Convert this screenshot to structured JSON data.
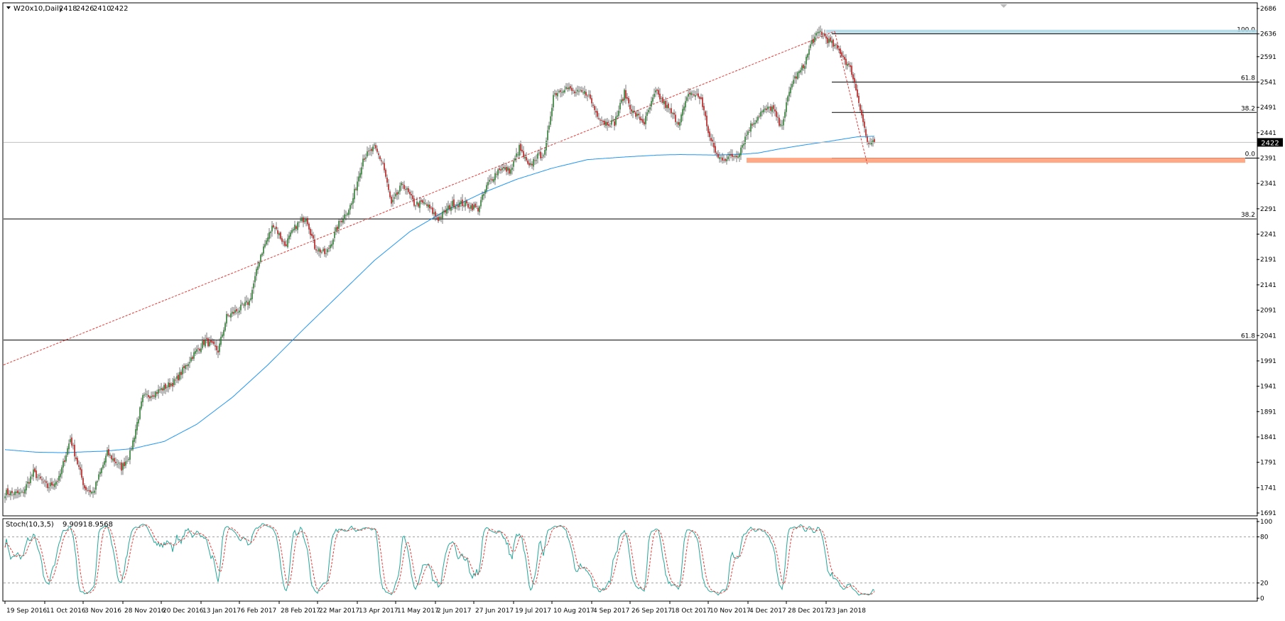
{
  "chart_data": [
    {
      "type": "candlestick",
      "header": {
        "symbol_label": "W20x10,Daily",
        "ohlc": [
          "2418",
          "2426",
          "2410",
          "2422"
        ]
      },
      "ylim": [
        1691,
        2686
      ],
      "y_ticks": [
        "2686",
        "2636",
        "2591",
        "2541",
        "2491",
        "2441",
        "2391",
        "2341",
        "2291",
        "2241",
        "2191",
        "2141",
        "2091",
        "2041",
        "1991",
        "1941",
        "1891",
        "1841",
        "1791",
        "1741",
        "1691"
      ],
      "x_ticks": [
        "19 Sep 2016",
        "11 Oct 2016",
        "3 Nov 2016",
        "28 Nov 2016",
        "20 Dec 2016",
        "13 Jan 2017",
        "6 Feb 2017",
        "28 Feb 2017",
        "22 Mar 2017",
        "13 Apr 2017",
        "11 May 2017",
        "2 Jun 2017",
        "27 Jun 2017",
        "19 Jul 2017",
        "10 Aug 2017",
        "4 Sep 2017",
        "26 Sep 2017",
        "18 Oct 2017",
        "10 Nov 2017",
        "4 Dec 2017",
        "28 Dec 2017",
        "23 Jan 2018"
      ],
      "current_price_label": "2422",
      "current_price": 2422,
      "bull_color": "#2e7d32",
      "bear_color": "#b71c1c",
      "ma_color": "#2196f3",
      "trend_color": "#e53935",
      "overlay_levels": [
        {
          "label": "100.0",
          "value": 2636,
          "span": "recent"
        },
        {
          "label": "61.8",
          "value": 2541,
          "span": "recent"
        },
        {
          "label": "38.2",
          "value": 2481,
          "span": "recent"
        },
        {
          "label": "0.0",
          "value": 2391,
          "span": "recent"
        },
        {
          "label": "38.2",
          "value": 2271,
          "span": "full"
        },
        {
          "label": "61.8",
          "value": 2032,
          "span": "full"
        }
      ],
      "price_anchors": [
        [
          0,
          1731
        ],
        [
          12,
          1729
        ],
        [
          20,
          1771
        ],
        [
          30,
          1742
        ],
        [
          38,
          1758
        ],
        [
          46,
          1838
        ],
        [
          56,
          1741
        ],
        [
          62,
          1731
        ],
        [
          72,
          1809
        ],
        [
          82,
          1780
        ],
        [
          88,
          1808
        ],
        [
          97,
          1918
        ],
        [
          107,
          1930
        ],
        [
          120,
          1951
        ],
        [
          132,
          2001
        ],
        [
          141,
          2031
        ],
        [
          150,
          2011
        ],
        [
          156,
          2078
        ],
        [
          165,
          2093
        ],
        [
          172,
          2108
        ],
        [
          180,
          2201
        ],
        [
          189,
          2261
        ],
        [
          197,
          2219
        ],
        [
          205,
          2258
        ],
        [
          212,
          2276
        ],
        [
          218,
          2216
        ],
        [
          226,
          2201
        ],
        [
          235,
          2261
        ],
        [
          244,
          2301
        ],
        [
          252,
          2391
        ],
        [
          260,
          2411
        ],
        [
          266,
          2381
        ],
        [
          272,
          2298
        ],
        [
          280,
          2341
        ],
        [
          288,
          2301
        ],
        [
          296,
          2301
        ],
        [
          305,
          2271
        ],
        [
          315,
          2301
        ],
        [
          323,
          2301
        ],
        [
          333,
          2291
        ],
        [
          340,
          2341
        ],
        [
          348,
          2371
        ],
        [
          356,
          2366
        ],
        [
          362,
          2411
        ],
        [
          369,
          2371
        ],
        [
          373,
          2391
        ],
        [
          380,
          2401
        ],
        [
          386,
          2516
        ],
        [
          394,
          2531
        ],
        [
          402,
          2519
        ],
        [
          410,
          2519
        ],
        [
          416,
          2481
        ],
        [
          422,
          2461
        ],
        [
          429,
          2461
        ],
        [
          436,
          2519
        ],
        [
          442,
          2481
        ],
        [
          450,
          2461
        ],
        [
          458,
          2521
        ],
        [
          466,
          2491
        ],
        [
          474,
          2461
        ],
        [
          482,
          2521
        ],
        [
          490,
          2508
        ],
        [
          496,
          2431
        ],
        [
          502,
          2391
        ],
        [
          508,
          2391
        ],
        [
          516,
          2399
        ],
        [
          524,
          2451
        ],
        [
          532,
          2481
        ],
        [
          540,
          2491
        ],
        [
          546,
          2451
        ],
        [
          554,
          2541
        ],
        [
          562,
          2571
        ],
        [
          568,
          2621
        ],
        [
          574,
          2641
        ],
        [
          580,
          2621
        ],
        [
          588,
          2601
        ],
        [
          596,
          2561
        ],
        [
          602,
          2491
        ],
        [
          607,
          2421
        ],
        [
          610,
          2418
        ],
        [
          612,
          2422
        ]
      ],
      "ma_anchors": [
        [
          0,
          1816
        ],
        [
          22,
          1811
        ],
        [
          40,
          1810
        ],
        [
          70,
          1813
        ],
        [
          90,
          1818
        ],
        [
          112,
          1832
        ],
        [
          135,
          1866
        ],
        [
          160,
          1919
        ],
        [
          185,
          1983
        ],
        [
          210,
          2053
        ],
        [
          235,
          2121
        ],
        [
          260,
          2189
        ],
        [
          285,
          2246
        ],
        [
          310,
          2287
        ],
        [
          335,
          2321
        ],
        [
          360,
          2349
        ],
        [
          385,
          2371
        ],
        [
          410,
          2388
        ],
        [
          435,
          2393
        ],
        [
          460,
          2397
        ],
        [
          475,
          2398
        ],
        [
          500,
          2397
        ],
        [
          520,
          2399
        ],
        [
          530,
          2401
        ],
        [
          545,
          2409
        ],
        [
          565,
          2418
        ],
        [
          580,
          2424
        ],
        [
          600,
          2433
        ],
        [
          612,
          2434
        ]
      ],
      "stoch_label": "Stoch(10,3,5)",
      "stoch_main_label": "9.9091",
      "stoch_signal_label": "8.9568",
      "stoch_main": 9.9091,
      "stoch_signal": 8.9568,
      "stoch_ticks": [
        "100",
        "80",
        "20",
        "0"
      ],
      "stoch_main_color": "#26a69a",
      "stoch_signal_color": "#e53935"
    }
  ]
}
